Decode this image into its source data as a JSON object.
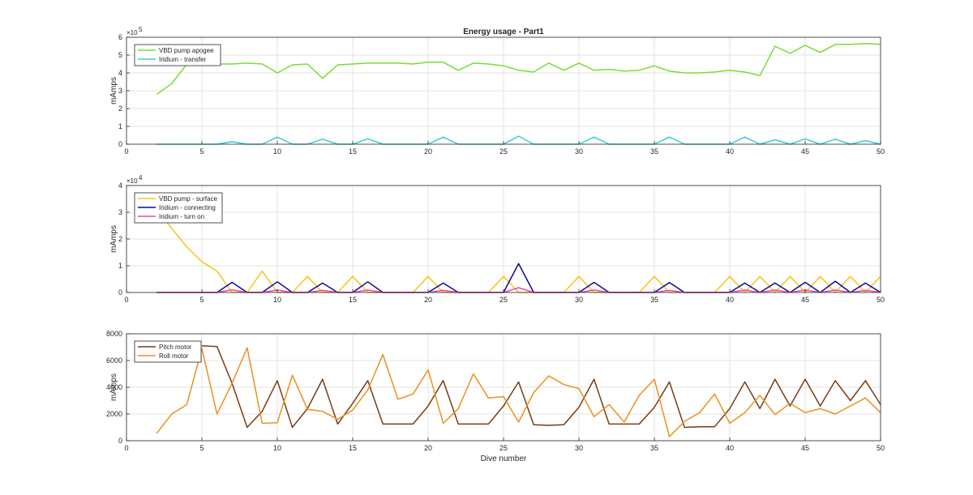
{
  "figure": {
    "title": "Energy usage - Part1"
  },
  "chart_data": [
    {
      "type": "line",
      "title": "Energy usage - Part1",
      "xlabel": "",
      "ylabel": "mAmps",
      "xlim": [
        0,
        50
      ],
      "ylim": [
        0,
        600000
      ],
      "y_multiplier": "×10",
      "y_exponent": "5",
      "x_ticks": [
        0,
        5,
        10,
        15,
        20,
        25,
        30,
        35,
        40,
        45,
        50
      ],
      "y_ticks": [
        0,
        100000,
        200000,
        300000,
        400000,
        500000,
        600000
      ],
      "y_tick_labels": [
        "0",
        "1",
        "2",
        "3",
        "4",
        "5",
        "6"
      ],
      "grid": true,
      "legend_position": "top-left",
      "series": [
        {
          "name": "VBD pump apogee",
          "color": "#77dd33",
          "x": [
            2,
            3,
            4,
            5,
            6,
            7,
            8,
            9,
            10,
            11,
            12,
            13,
            14,
            15,
            16,
            17,
            18,
            19,
            20,
            21,
            22,
            23,
            24,
            25,
            26,
            27,
            28,
            29,
            30,
            31,
            32,
            33,
            34,
            35,
            36,
            37,
            38,
            39,
            40,
            41,
            42,
            43,
            44,
            45,
            46,
            47,
            48,
            49,
            50
          ],
          "y": [
            280000,
            340000,
            450000,
            460000,
            450000,
            450000,
            455000,
            450000,
            400000,
            445000,
            450000,
            370000,
            445000,
            450000,
            455000,
            455000,
            455000,
            450000,
            460000,
            460000,
            415000,
            455000,
            450000,
            440000,
            415000,
            405000,
            455000,
            415000,
            455000,
            415000,
            420000,
            410000,
            415000,
            440000,
            410000,
            400000,
            400000,
            405000,
            415000,
            405000,
            385000,
            550000,
            510000,
            555000,
            515000,
            560000,
            560000,
            565000,
            560000
          ]
        },
        {
          "name": "Iridium - transfer",
          "color": "#33ccdd",
          "x": [
            2,
            3,
            4,
            5,
            6,
            7,
            8,
            9,
            10,
            11,
            12,
            13,
            14,
            15,
            16,
            17,
            18,
            19,
            20,
            21,
            22,
            23,
            24,
            25,
            26,
            27,
            28,
            29,
            30,
            31,
            32,
            33,
            34,
            35,
            36,
            37,
            38,
            39,
            40,
            41,
            42,
            43,
            44,
            45,
            46,
            47,
            48,
            49,
            50
          ],
          "y": [
            0,
            0,
            0,
            0,
            0,
            15000,
            0,
            0,
            40000,
            0,
            0,
            28000,
            0,
            0,
            30000,
            0,
            0,
            0,
            0,
            40000,
            0,
            0,
            0,
            0,
            45000,
            0,
            0,
            0,
            0,
            40000,
            0,
            0,
            0,
            0,
            40000,
            0,
            0,
            0,
            0,
            40000,
            0,
            25000,
            0,
            30000,
            0,
            28000,
            0,
            20000,
            0
          ]
        }
      ]
    },
    {
      "type": "line",
      "xlabel": "",
      "ylabel": "mAmps",
      "xlim": [
        0,
        50
      ],
      "ylim": [
        0,
        40000
      ],
      "y_multiplier": "×10",
      "y_exponent": "4",
      "x_ticks": [
        0,
        5,
        10,
        15,
        20,
        25,
        30,
        35,
        40,
        45,
        50
      ],
      "y_ticks": [
        0,
        10000,
        20000,
        30000,
        40000
      ],
      "y_tick_labels": [
        "0",
        "1",
        "2",
        "3",
        "4"
      ],
      "grid": true,
      "legend_position": "top-left",
      "series": [
        {
          "name": "VBD pump - surface",
          "color": "#f5c518",
          "x": [
            2,
            3,
            4,
            5,
            6,
            7,
            8,
            9,
            10,
            11,
            12,
            13,
            14,
            15,
            16,
            17,
            18,
            19,
            20,
            21,
            22,
            23,
            24,
            25,
            26,
            27,
            28,
            29,
            30,
            31,
            32,
            33,
            34,
            35,
            36,
            37,
            38,
            39,
            40,
            41,
            42,
            43,
            44,
            45,
            46,
            47,
            48,
            49,
            50
          ],
          "y": [
            31000,
            24000,
            17000,
            11500,
            8000,
            0,
            0,
            8000,
            0,
            0,
            6000,
            0,
            0,
            6000,
            0,
            0,
            0,
            0,
            6000,
            0,
            0,
            0,
            0,
            6000,
            0,
            0,
            0,
            0,
            6000,
            0,
            0,
            0,
            0,
            6000,
            0,
            0,
            0,
            0,
            6000,
            0,
            6000,
            0,
            6000,
            0,
            6000,
            0,
            6000,
            0,
            6000
          ]
        },
        {
          "name": "Iridium - connecting",
          "color": "#0a0a99",
          "x": [
            2,
            3,
            4,
            5,
            6,
            7,
            8,
            9,
            10,
            11,
            12,
            13,
            14,
            15,
            16,
            17,
            18,
            19,
            20,
            21,
            22,
            23,
            24,
            25,
            26,
            27,
            28,
            29,
            30,
            31,
            32,
            33,
            34,
            35,
            36,
            37,
            38,
            39,
            40,
            41,
            42,
            43,
            44,
            45,
            46,
            47,
            48,
            49,
            50
          ],
          "y": [
            0,
            0,
            0,
            0,
            0,
            3800,
            0,
            0,
            4000,
            0,
            0,
            3500,
            0,
            0,
            4000,
            0,
            0,
            0,
            0,
            3500,
            0,
            0,
            0,
            0,
            10800,
            0,
            0,
            0,
            0,
            3800,
            0,
            0,
            0,
            0,
            3700,
            0,
            0,
            0,
            0,
            3500,
            0,
            3500,
            0,
            3800,
            0,
            4200,
            0,
            3500,
            0
          ]
        },
        {
          "name": "Iridium - turn on",
          "color": "#ee44aa",
          "x": [
            2,
            3,
            4,
            5,
            6,
            7,
            8,
            9,
            10,
            11,
            12,
            13,
            14,
            15,
            16,
            17,
            18,
            19,
            20,
            21,
            22,
            23,
            24,
            25,
            26,
            27,
            28,
            29,
            30,
            31,
            32,
            33,
            34,
            35,
            36,
            37,
            38,
            39,
            40,
            41,
            42,
            43,
            44,
            45,
            46,
            47,
            48,
            49,
            50
          ],
          "y": [
            0,
            0,
            0,
            0,
            0,
            1000,
            0,
            0,
            900,
            0,
            0,
            800,
            0,
            0,
            900,
            0,
            0,
            0,
            0,
            800,
            0,
            0,
            0,
            0,
            1800,
            0,
            0,
            0,
            0,
            900,
            0,
            0,
            0,
            0,
            800,
            0,
            0,
            0,
            0,
            900,
            0,
            900,
            0,
            900,
            0,
            900,
            0,
            800,
            0
          ]
        }
      ]
    },
    {
      "type": "line",
      "xlabel": "Dive number",
      "ylabel": "mAmps",
      "xlim": [
        0,
        50
      ],
      "ylim": [
        0,
        8000
      ],
      "x_ticks": [
        0,
        5,
        10,
        15,
        20,
        25,
        30,
        35,
        40,
        45,
        50
      ],
      "y_ticks": [
        0,
        2000,
        4000,
        6000,
        8000
      ],
      "y_tick_labels": [
        "0",
        "2000",
        "4000",
        "6000",
        "8000"
      ],
      "grid": true,
      "legend_position": "top-left",
      "series": [
        {
          "name": "Pitch motor",
          "color": "#7a3b12",
          "x": [
            5,
            6,
            7,
            8,
            9,
            10,
            11,
            12,
            13,
            14,
            15,
            16,
            17,
            18,
            19,
            20,
            21,
            22,
            23,
            24,
            25,
            26,
            27,
            28,
            29,
            30,
            31,
            32,
            33,
            34,
            35,
            36,
            37,
            38,
            39,
            40,
            41,
            42,
            43,
            44,
            45,
            46,
            47,
            48,
            49,
            50
          ],
          "y": [
            7100,
            7050,
            4300,
            1000,
            2200,
            4500,
            1000,
            2400,
            4600,
            1250,
            2800,
            4500,
            1250,
            1250,
            1250,
            2600,
            4500,
            1250,
            1250,
            1250,
            2600,
            4400,
            1200,
            1150,
            1200,
            2500,
            4600,
            1250,
            1250,
            1250,
            2500,
            4400,
            1000,
            1050,
            1050,
            2400,
            4400,
            2400,
            4600,
            2600,
            4600,
            2600,
            4500,
            3000,
            4500,
            2700
          ]
        },
        {
          "name": "Roll motor",
          "color": "#e8921c",
          "x": [
            2,
            3,
            4,
            5,
            6,
            7,
            8,
            9,
            10,
            11,
            12,
            13,
            14,
            15,
            16,
            17,
            18,
            19,
            20,
            21,
            22,
            23,
            24,
            25,
            26,
            27,
            28,
            29,
            30,
            31,
            32,
            33,
            34,
            35,
            36,
            37,
            38,
            39,
            40,
            41,
            42,
            43,
            44,
            45,
            46,
            47,
            48,
            49,
            50
          ],
          "y": [
            550,
            2000,
            2700,
            6900,
            2000,
            4300,
            6950,
            1300,
            1350,
            4900,
            2350,
            2200,
            1600,
            2300,
            3800,
            6450,
            3100,
            3500,
            5300,
            1300,
            2400,
            5000,
            3200,
            3300,
            1400,
            3600,
            4850,
            4200,
            3900,
            1800,
            2700,
            1400,
            3400,
            4600,
            300,
            1450,
            2100,
            3500,
            1300,
            2100,
            3400,
            1950,
            2800,
            2100,
            2400,
            2000,
            2600,
            3200,
            2100
          ]
        }
      ]
    }
  ]
}
